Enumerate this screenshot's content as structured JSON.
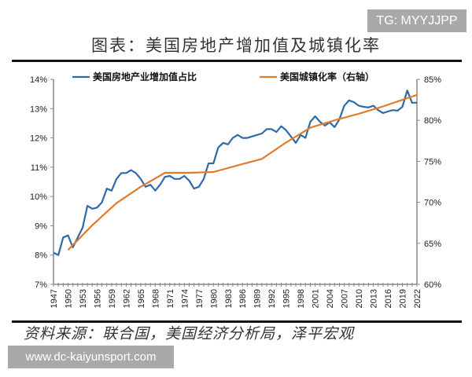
{
  "watermark_top": "TG: MYYJJPP",
  "watermark_bottom": "www.dc-kaiyunsport.com",
  "header": {
    "title": "图表：美国房地产增加值及城镇化率"
  },
  "footer": {
    "source": "资料来源：联合国，美国经济分析局，泽平宏观"
  },
  "chart_data": {
    "type": "line",
    "title": "",
    "legend_position": "top",
    "grid": false,
    "x_ticks": [
      "1947",
      "1950",
      "1953",
      "1956",
      "1959",
      "1962",
      "1965",
      "1968",
      "1971",
      "1974",
      "1977",
      "1980",
      "1983",
      "1986",
      "1989",
      "1992",
      "1995",
      "1998",
      "2001",
      "2004",
      "2007",
      "2010",
      "2013",
      "2016",
      "2019",
      "2022"
    ],
    "xlim": [
      1947,
      2022
    ],
    "y_left": {
      "ylim": [
        7,
        14
      ],
      "ticks": [
        "7%",
        "8%",
        "9%",
        "10%",
        "11%",
        "12%",
        "13%",
        "14%"
      ]
    },
    "y_right": {
      "ylim": [
        60,
        85
      ],
      "ticks": [
        "60%",
        "65%",
        "70%",
        "75%",
        "80%",
        "85%"
      ]
    },
    "series": [
      {
        "name": "美国房地产业增加值占比",
        "axis": "left",
        "color": "#2e6aa8",
        "x": [
          1947,
          1948,
          1949,
          1950,
          1951,
          1952,
          1953,
          1954,
          1955,
          1956,
          1957,
          1958,
          1959,
          1960,
          1961,
          1962,
          1963,
          1964,
          1965,
          1966,
          1967,
          1968,
          1969,
          1970,
          1971,
          1972,
          1973,
          1974,
          1975,
          1976,
          1977,
          1978,
          1979,
          1980,
          1981,
          1982,
          1983,
          1984,
          1985,
          1986,
          1987,
          1988,
          1989,
          1990,
          1991,
          1992,
          1993,
          1994,
          1995,
          1996,
          1997,
          1998,
          1999,
          2000,
          2001,
          2002,
          2003,
          2004,
          2005,
          2006,
          2007,
          2008,
          2009,
          2010,
          2011,
          2012,
          2013,
          2014,
          2015,
          2016,
          2017,
          2018,
          2019,
          2020,
          2021,
          2022
        ],
        "y": [
          8.08,
          8.0,
          8.6,
          8.67,
          8.26,
          8.6,
          8.93,
          9.68,
          9.58,
          9.62,
          9.8,
          10.27,
          10.2,
          10.6,
          10.8,
          10.8,
          10.9,
          10.8,
          10.6,
          10.33,
          10.4,
          10.2,
          10.4,
          10.67,
          10.7,
          10.6,
          10.6,
          10.7,
          10.54,
          10.27,
          10.33,
          10.6,
          11.13,
          11.13,
          11.67,
          11.83,
          11.78,
          12.0,
          12.1,
          12.0,
          12.0,
          12.05,
          12.1,
          12.15,
          12.3,
          12.3,
          12.2,
          12.4,
          12.26,
          12.05,
          11.83,
          12.1,
          12.0,
          12.55,
          12.74,
          12.55,
          12.42,
          12.53,
          12.37,
          12.63,
          13.1,
          13.28,
          13.22,
          13.1,
          13.06,
          13.04,
          13.1,
          12.95,
          12.85,
          12.9,
          12.95,
          12.93,
          13.06,
          13.62,
          13.2,
          13.2
        ]
      },
      {
        "name": "美国城镇化率（右轴）",
        "axis": "right",
        "color": "#e07b2a",
        "x": [
          1950,
          1955,
          1960,
          1965,
          1970,
          1975,
          1980,
          1985,
          1990,
          1995,
          2000,
          2005,
          2010,
          2015,
          2020,
          2022
        ],
        "y": [
          64.2,
          67.2,
          69.9,
          71.9,
          73.6,
          73.6,
          73.7,
          74.5,
          75.3,
          77.3,
          79.1,
          80.0,
          80.8,
          81.7,
          82.7,
          83.1
        ]
      }
    ]
  }
}
